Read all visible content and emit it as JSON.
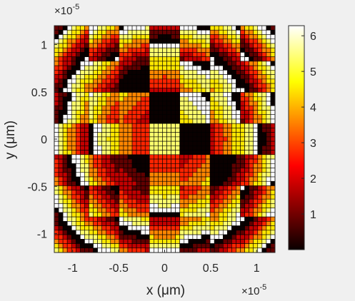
{
  "chart_data": {
    "type": "heatmap",
    "title": "",
    "xlabel": "x (μm)",
    "ylabel": "y (μm)",
    "x_exponent_base": "×10",
    "x_exponent_power": "-5",
    "y_exponent_base": "×10",
    "y_exponent_power": "-5",
    "xlim": [
      -1.2,
      1.2
    ],
    "ylim": [
      -1.2,
      1.2
    ],
    "xticks": [
      -1,
      -0.5,
      0,
      0.5,
      1
    ],
    "xtick_labels": [
      "-1",
      "-0.5",
      "0",
      "0.5",
      "1"
    ],
    "yticks": [
      -1,
      -0.5,
      0,
      0.5,
      1
    ],
    "ytick_labels": [
      "-1",
      "-0.5",
      "0",
      "0.5",
      "1"
    ],
    "colorbar": {
      "colormap": "hot",
      "clim": [
        0,
        6.2832
      ],
      "ticks": [
        1,
        2,
        3,
        4,
        5,
        6
      ],
      "tick_labels": [
        "1",
        "2",
        "3",
        "4",
        "5",
        "6"
      ]
    },
    "grid_size": 51,
    "quantity": "phase",
    "phase_levels": 8,
    "block_grid": 7,
    "grid_lines_visible": true,
    "grid_line_color": "#000000"
  }
}
